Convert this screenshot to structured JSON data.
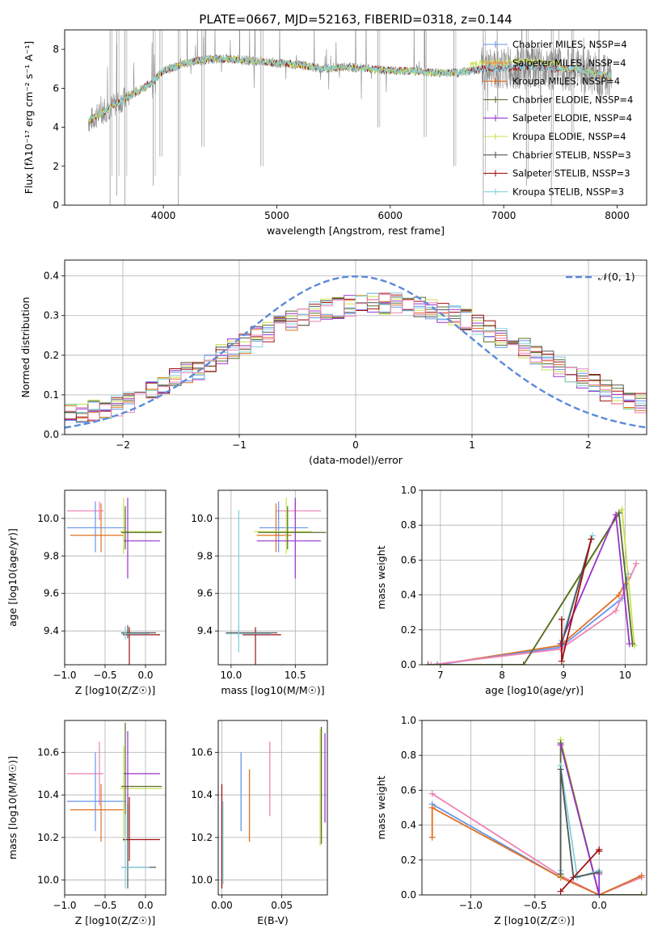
{
  "figure_title": "PLATE=0667, MJD=52163, FIBERID=0318, z=0.144",
  "colors": {
    "chabrier_miles": "#6495ed",
    "salpeter_miles": "#ff7f50",
    "kroupa_miles": "#e07020",
    "chabrier_elodie": "#556b2f",
    "salpeter_elodie": "#9932cc",
    "kroupa_elodie": "#c8e050",
    "chabrier_stelib": "#555555",
    "salpeter_stelib": "#a01010",
    "kroupa_stelib": "#80d0e0",
    "pink": "#ee82b4",
    "data": "#888888",
    "gaussian": "#5b8bd8"
  },
  "chart_data": [
    {
      "type": "line",
      "id": "spectrum",
      "title": "PLATE=0667, MJD=52163, FIBERID=0318, z=0.144",
      "xlabel": "wavelength [Angstrom, rest frame]",
      "ylabel": "Flux [fλ10⁻¹⁷ erg cm⁻² s⁻¹ A⁻¹]",
      "xlim": [
        3130,
        8260
      ],
      "ylim": [
        0,
        9
      ],
      "xticks": [
        4000,
        5000,
        6000,
        7000,
        8000
      ],
      "yticks": [
        0,
        2,
        4,
        6,
        8
      ],
      "legend_position": "top-right",
      "legend": [
        {
          "label": "Chabrier MILES, NSSP=4",
          "color": "#6495ed"
        },
        {
          "label": "Salpeter MILES, NSSP=4",
          "color": "#ff7f50"
        },
        {
          "label": "Kroupa MILES, NSSP=4",
          "color": "#e07020"
        },
        {
          "label": "Chabrier ELODIE, NSSP=4",
          "color": "#556b2f"
        },
        {
          "label": "Salpeter ELODIE, NSSP=4",
          "color": "#9932cc"
        },
        {
          "label": "Kroupa ELODIE, NSSP=4",
          "color": "#c8e050"
        },
        {
          "label": "Chabrier STELIB, NSSP=3",
          "color": "#555555"
        },
        {
          "label": "Salpeter STELIB, NSSP=3",
          "color": "#a01010"
        },
        {
          "label": "Kroupa STELIB, NSSP=3",
          "color": "#80d0e0"
        }
      ],
      "continuum": {
        "x": [
          3340,
          3500,
          3700,
          3900,
          4000,
          4200,
          4400,
          4600,
          4800,
          5000,
          5200,
          5400,
          5600,
          5800,
          6000,
          6200,
          6400,
          6600,
          6800,
          7000,
          7200,
          7400,
          7600,
          7800,
          7950
        ],
        "y": [
          4.3,
          4.9,
          5.6,
          6.3,
          6.9,
          7.3,
          7.5,
          7.5,
          7.4,
          7.3,
          7.2,
          7.0,
          7.1,
          7.0,
          6.9,
          6.9,
          6.8,
          6.8,
          7.0,
          7.0,
          7.1,
          7.0,
          7.0,
          6.8,
          6.6
        ]
      },
      "spikes": [
        {
          "x": 3530,
          "low": 0,
          "high": 9
        },
        {
          "x": 3590,
          "low": 0.5,
          "high": 9
        },
        {
          "x": 3660,
          "low": 0,
          "high": 9
        },
        {
          "x": 3910,
          "low": 1.0,
          "high": 9
        },
        {
          "x": 3970,
          "low": 2.5,
          "high": 9
        },
        {
          "x": 4130,
          "low": 0,
          "high": 9
        },
        {
          "x": 4340,
          "low": 3.0,
          "high": 9
        },
        {
          "x": 4860,
          "low": 2.0,
          "high": 9
        },
        {
          "x": 5890,
          "low": 4.0,
          "high": 9
        },
        {
          "x": 6300,
          "low": 3.5,
          "high": 9
        },
        {
          "x": 6560,
          "low": 2.0,
          "high": 9
        },
        {
          "x": 6820,
          "low": 0,
          "high": 9
        },
        {
          "x": 7200,
          "low": 1.0,
          "high": 9
        },
        {
          "x": 7420,
          "low": 0,
          "high": 9
        },
        {
          "x": 7600,
          "low": 3.5,
          "high": 9
        }
      ]
    },
    {
      "type": "line",
      "id": "residuals",
      "xlabel": "(data-model)/error",
      "ylabel": "Normed distribution",
      "xlim": [
        -2.5,
        2.5
      ],
      "ylim": [
        0,
        0.44
      ],
      "xticks": [
        -2,
        -1,
        0,
        1,
        2
      ],
      "yticks": [
        0.0,
        0.1,
        0.2,
        0.3,
        0.4
      ],
      "grid": true,
      "legend_position": "top-right",
      "gaussian_label": "𝒩(0, 1)",
      "bin_width": 0.1,
      "bin_start": -2.5,
      "hist_base": [
        0.05,
        0.05,
        0.06,
        0.065,
        0.07,
        0.08,
        0.09,
        0.11,
        0.13,
        0.145,
        0.155,
        0.165,
        0.18,
        0.2,
        0.215,
        0.23,
        0.245,
        0.26,
        0.275,
        0.29,
        0.3,
        0.31,
        0.315,
        0.32,
        0.325,
        0.33,
        0.33,
        0.33,
        0.33,
        0.325,
        0.32,
        0.315,
        0.31,
        0.3,
        0.29,
        0.275,
        0.26,
        0.245,
        0.23,
        0.215,
        0.2,
        0.185,
        0.17,
        0.155,
        0.14,
        0.125,
        0.11,
        0.1,
        0.09,
        0.08
      ]
    },
    {
      "type": "scatter",
      "id": "age_vs_z",
      "xlabel": "Z [log10(Z/Z☉)]",
      "ylabel": "age  [log10(age/yr)]",
      "xlim": [
        -1.0,
        0.25
      ],
      "ylim": [
        9.22,
        10.15
      ],
      "xticks": [
        -1.0,
        -0.5,
        0.0
      ],
      "yticks": [
        9.4,
        9.6,
        9.8,
        10.0
      ],
      "grid": true,
      "crosses": [
        {
          "x": -0.57,
          "xerr": [
            0.4,
            0.05
          ],
          "y": 10.04,
          "yerr": [
            0.05,
            0.05
          ],
          "color": "#ee82b4"
        },
        {
          "x": -0.62,
          "xerr": [
            0.35,
            0.38
          ],
          "y": 9.95,
          "yerr": [
            0.13,
            0.14
          ],
          "color": "#6495ed"
        },
        {
          "x": -0.55,
          "xerr": [
            0.38,
            0.28
          ],
          "y": 9.91,
          "yerr": [
            0.09,
            0.17
          ],
          "color": "#e07020"
        },
        {
          "x": -0.27,
          "xerr": [
            0.05,
            0.48
          ],
          "y": 9.93,
          "yerr": [
            0.12,
            0.18
          ],
          "color": "#c8e050"
        },
        {
          "x": -0.22,
          "xerr": [
            0.05,
            0.4
          ],
          "y": 9.88,
          "yerr": [
            0.2,
            0.23
          ],
          "color": "#9932cc"
        },
        {
          "x": -0.25,
          "xerr": [
            0.05,
            0.45
          ],
          "y": 9.925,
          "yerr": [
            0.09,
            0.14
          ],
          "color": "#556b2f"
        },
        {
          "x": -0.2,
          "xerr": [
            0.08,
            0.38
          ],
          "y": 9.38,
          "yerr": [
            0.5,
            0.04
          ],
          "color": "#a01010"
        },
        {
          "x": -0.22,
          "xerr": [
            0.08,
            0.35
          ],
          "y": 9.39,
          "yerr": [
            0.03,
            0.04
          ],
          "color": "#555555"
        },
        {
          "x": -0.25,
          "xerr": [
            0.05,
            0.3
          ],
          "y": 9.385,
          "yerr": [
            0.03,
            0.04
          ],
          "color": "#80d0e0"
        }
      ]
    },
    {
      "type": "scatter",
      "id": "age_vs_mass",
      "xlabel": "mass [log10(M/M☉)]",
      "xlim": [
        9.9,
        10.75
      ],
      "ylim": [
        9.22,
        10.15
      ],
      "xticks": [
        10.0,
        10.5
      ],
      "yticks": [
        9.4,
        9.6,
        9.8,
        10.0
      ],
      "grid": true,
      "crosses": [
        {
          "x": 10.5,
          "xerr": [
            0.15,
            0.2
          ],
          "y": 10.04,
          "yerr": [
            0.05,
            0.05
          ],
          "color": "#ee82b4"
        },
        {
          "x": 10.37,
          "xerr": [
            0.15,
            0.23
          ],
          "y": 9.95,
          "yerr": [
            0.13,
            0.14
          ],
          "color": "#6495ed"
        },
        {
          "x": 10.35,
          "xerr": [
            0.15,
            0.12
          ],
          "y": 9.91,
          "yerr": [
            0.09,
            0.17
          ],
          "color": "#e07020"
        },
        {
          "x": 10.43,
          "xerr": [
            0.25,
            0.2
          ],
          "y": 9.93,
          "yerr": [
            0.12,
            0.18
          ],
          "color": "#c8e050"
        },
        {
          "x": 10.5,
          "xerr": [
            0.3,
            0.2
          ],
          "y": 9.88,
          "yerr": [
            0.2,
            0.23
          ],
          "color": "#9932cc"
        },
        {
          "x": 10.44,
          "xerr": [
            0.23,
            0.3
          ],
          "y": 9.925,
          "yerr": [
            0.09,
            0.14
          ],
          "color": "#556b2f"
        },
        {
          "x": 10.19,
          "xerr": [
            0.1,
            0.2
          ],
          "y": 9.38,
          "yerr": [
            0.5,
            0.04
          ],
          "color": "#a01010"
        },
        {
          "x": 10.06,
          "xerr": [
            0.1,
            0.3
          ],
          "y": 9.39,
          "yerr": [
            0.03,
            0.04
          ],
          "color": "#555555"
        },
        {
          "x": 10.06,
          "xerr": [
            0.1,
            0.25
          ],
          "y": 9.385,
          "yerr": [
            0.1,
            0.66
          ],
          "color": "#80d0e0"
        }
      ]
    },
    {
      "type": "line",
      "id": "mass_weight_vs_age",
      "xlabel": "age  [log10(age/yr)]",
      "ylabel": "mass weight",
      "xlim": [
        6.7,
        10.35
      ],
      "ylim": [
        0,
        1.0
      ],
      "xticks": [
        7,
        8,
        9,
        10
      ],
      "yticks": [
        0.0,
        0.2,
        0.4,
        0.6,
        0.8,
        1.0
      ],
      "grid": true,
      "series": [
        {
          "color": "#e07020",
          "x": [
            6.95,
            8.95,
            9.9,
            10.05
          ],
          "y": [
            0.0,
            0.11,
            0.4,
            0.5
          ]
        },
        {
          "color": "#6495ed",
          "x": [
            6.95,
            8.95,
            9.95,
            10.05
          ],
          "y": [
            0.0,
            0.1,
            0.38,
            0.52
          ]
        },
        {
          "color": "#ee82b4",
          "x": [
            6.85,
            8.95,
            9.85,
            10.18
          ],
          "y": [
            0.0,
            0.09,
            0.31,
            0.58
          ]
        },
        {
          "color": "#c8e050",
          "x": [
            6.8,
            8.35,
            9.95,
            10.15
          ],
          "y": [
            0.0,
            0.0,
            0.89,
            0.11
          ]
        },
        {
          "color": "#556b2f",
          "x": [
            6.8,
            8.35,
            9.9,
            10.12
          ],
          "y": [
            0.0,
            0.0,
            0.87,
            0.12
          ]
        },
        {
          "color": "#9932cc",
          "x": [
            8.95,
            9.85,
            10.07
          ],
          "y": [
            0.12,
            0.86,
            0.12
          ]
        },
        {
          "color": "#80d0e0",
          "x": [
            8.97,
            9.47
          ],
          "y": [
            0.14,
            0.74
          ]
        },
        {
          "color": "#555555",
          "x": [
            8.97,
            9.45
          ],
          "y": [
            0.12,
            0.72
          ]
        },
        {
          "color": "#a01010",
          "x": [
            8.97,
            8.97,
            9.45
          ],
          "y": [
            0.26,
            0.02,
            0.72
          ]
        }
      ]
    },
    {
      "type": "scatter",
      "id": "mass_vs_z",
      "xlabel": "Z [log10(Z/Z☉)]",
      "ylabel": "mass [log10(M/M☉)]",
      "xlim": [
        -1.0,
        0.25
      ],
      "ylim": [
        9.93,
        10.75
      ],
      "xticks": [
        -1.0,
        -0.5,
        0.0
      ],
      "yticks": [
        10.0,
        10.2,
        10.4,
        10.6
      ],
      "grid": true,
      "crosses": [
        {
          "x": -0.57,
          "xerr": [
            0.4,
            0.05
          ],
          "y": 10.5,
          "yerr": [
            0.15,
            0.15
          ],
          "color": "#ee82b4"
        },
        {
          "x": -0.62,
          "xerr": [
            0.35,
            0.38
          ],
          "y": 10.37,
          "yerr": [
            0.14,
            0.23
          ],
          "color": "#6495ed"
        },
        {
          "x": -0.55,
          "xerr": [
            0.38,
            0.28
          ],
          "y": 10.33,
          "yerr": [
            0.15,
            0.12
          ],
          "color": "#e07020"
        },
        {
          "x": -0.27,
          "xerr": [
            0.05,
            0.48
          ],
          "y": 10.43,
          "yerr": [
            0.25,
            0.2
          ],
          "color": "#c8e050"
        },
        {
          "x": -0.22,
          "xerr": [
            0.05,
            0.4
          ],
          "y": 10.5,
          "yerr": [
            0.3,
            0.2
          ],
          "color": "#9932cc"
        },
        {
          "x": -0.25,
          "xerr": [
            0.05,
            0.45
          ],
          "y": 10.44,
          "yerr": [
            0.23,
            0.3
          ],
          "color": "#556b2f"
        },
        {
          "x": -0.2,
          "xerr": [
            0.08,
            0.38
          ],
          "y": 10.19,
          "yerr": [
            0.1,
            0.2
          ],
          "color": "#a01010"
        },
        {
          "x": -0.22,
          "xerr": [
            0.08,
            0.35
          ],
          "y": 10.06,
          "yerr": [
            0.1,
            0.3
          ],
          "color": "#555555"
        },
        {
          "x": -0.25,
          "xerr": [
            0.05,
            0.3
          ],
          "y": 10.06,
          "yerr": [
            0.1,
            0.25
          ],
          "color": "#80d0e0"
        }
      ]
    },
    {
      "type": "scatter",
      "id": "mass_vs_ebv",
      "xlabel": "E(B-V)",
      "xlim": [
        -0.003,
        0.088
      ],
      "ylim": [
        9.93,
        10.75
      ],
      "xticks": [
        0.0,
        0.05
      ],
      "yticks": [
        10.0,
        10.2,
        10.4,
        10.6
      ],
      "grid": true,
      "bars": [
        {
          "x": 0.0,
          "low": 9.96,
          "high": 10.45,
          "color": "#a01010"
        },
        {
          "x": 0.001,
          "low": 9.98,
          "high": 10.37,
          "color": "#80d0e0"
        },
        {
          "x": 0.016,
          "low": 10.23,
          "high": 10.6,
          "color": "#6495ed"
        },
        {
          "x": 0.023,
          "low": 10.18,
          "high": 10.52,
          "color": "#e07020"
        },
        {
          "x": 0.04,
          "low": 10.3,
          "high": 10.65,
          "color": "#ee82b4"
        },
        {
          "x": 0.082,
          "low": 10.16,
          "high": 10.71,
          "color": "#c8e050"
        },
        {
          "x": 0.083,
          "low": 10.17,
          "high": 10.72,
          "color": "#556b2f"
        },
        {
          "x": 0.086,
          "low": 10.27,
          "high": 10.69,
          "color": "#9932cc"
        }
      ]
    },
    {
      "type": "line",
      "id": "mass_weight_vs_z",
      "xlabel": "Z [log10(Z/Z☉)]",
      "ylabel": "mass weight",
      "xlim": [
        -1.38,
        0.37
      ],
      "ylim": [
        0,
        1.0
      ],
      "xticks": [
        -1.0,
        -0.5,
        0.0
      ],
      "yticks": [
        0.0,
        0.2,
        0.4,
        0.6,
        0.8,
        1.0
      ],
      "grid": true,
      "series": [
        {
          "color": "#ee82b4",
          "x": [
            -1.3,
            -0.3,
            0.0,
            0.33
          ],
          "y": [
            0.58,
            0.11,
            0.0,
            0.1
          ]
        },
        {
          "color": "#6495ed",
          "x": [
            -1.3,
            -0.3,
            0.0,
            0.33
          ],
          "y": [
            0.52,
            0.1,
            0.0,
            0.11
          ]
        },
        {
          "color": "#e07020",
          "x": [
            -1.3,
            -1.3,
            -0.3,
            0.0,
            0.33
          ],
          "y": [
            0.33,
            0.5,
            0.1,
            0.0,
            0.11
          ]
        },
        {
          "color": "#c8e050",
          "x": [
            -0.3,
            -0.3,
            0.0,
            0.33
          ],
          "y": [
            0.11,
            0.89,
            0.0,
            0.0
          ]
        },
        {
          "color": "#556b2f",
          "x": [
            -0.3,
            -0.3,
            0.0,
            0.33
          ],
          "y": [
            0.12,
            0.87,
            0.0,
            0.0
          ]
        },
        {
          "color": "#9932cc",
          "x": [
            -0.3,
            0.0,
            0.0
          ],
          "y": [
            0.86,
            0.0,
            0.12
          ]
        },
        {
          "color": "#80d0e0",
          "x": [
            -0.3,
            -0.3,
            -0.17,
            0.0
          ],
          "y": [
            0.14,
            0.74,
            0.1,
            0.14
          ]
        },
        {
          "color": "#555555",
          "x": [
            -0.3,
            -0.3,
            -0.2,
            0.0
          ],
          "y": [
            0.12,
            0.72,
            0.1,
            0.13
          ]
        },
        {
          "color": "#a01010",
          "x": [
            -0.3,
            0.0,
            0.0
          ],
          "y": [
            0.02,
            0.26,
            0.25
          ]
        }
      ]
    }
  ]
}
